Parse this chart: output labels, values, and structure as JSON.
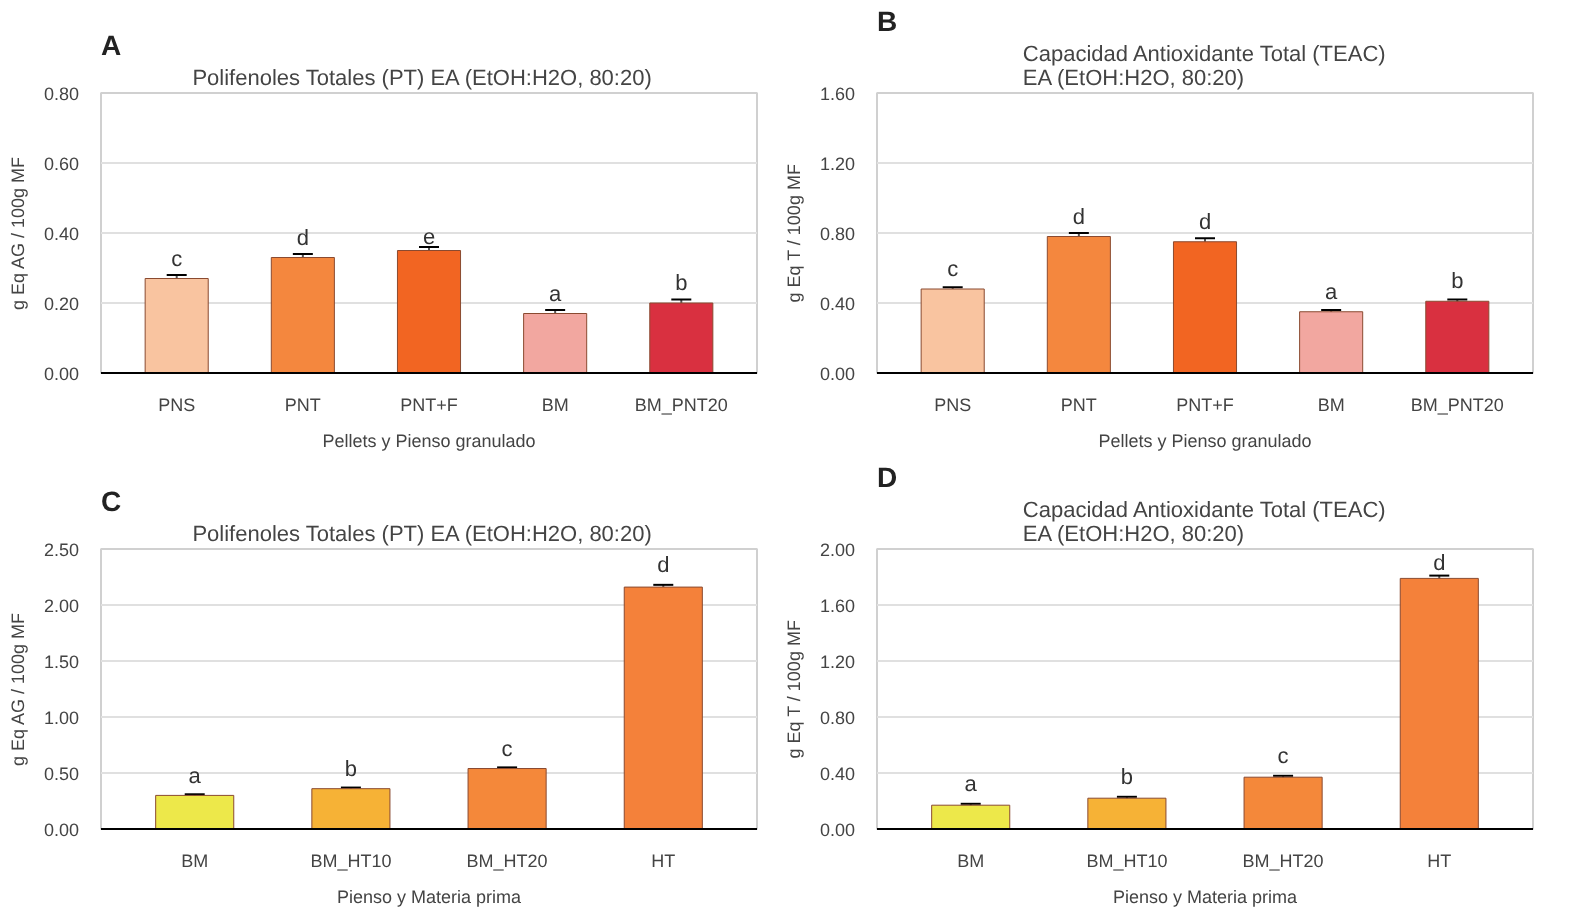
{
  "chart_data": [
    {
      "type": "bar",
      "title": "Polifenoles Totales (PT)   EA (EtOH:H2O, 80:20)",
      "xlabel": "Pellets y Pienso granulado",
      "ylabel": "g Eq AG / 100g MF",
      "categories": [
        "PNS",
        "PNT",
        "PNT+F",
        "BM",
        "BM_PNT20"
      ],
      "values": [
        0.27,
        0.33,
        0.35,
        0.17,
        0.2
      ],
      "errors": [
        0.01,
        0.01,
        0.01,
        0.01,
        0.01
      ],
      "colors": [
        "#f9c4a0",
        "#f4873e",
        "#f26522",
        "#f2a7a0",
        "#d93040"
      ],
      "ylim": [
        0,
        0.8
      ],
      "yticks": [
        {
          "value": 0,
          "label": "0.00"
        },
        {
          "value": 0.2,
          "label": "0.20"
        },
        {
          "value": 0.4,
          "label": "0.40"
        },
        {
          "value": 0.6,
          "label": "0.60"
        },
        {
          "value": 0.8,
          "label": "0.80"
        }
      ],
      "grid": "y",
      "annotations": [
        "A",
        {
          "text": "c",
          "x": "PNS",
          "y": 0.29
        },
        {
          "text": "d",
          "x": "PNT",
          "y": 0.35
        },
        {
          "text": "e",
          "x": "PNT+F",
          "y": 0.37
        },
        {
          "text": "a",
          "x": "BM",
          "y": 0.19
        },
        {
          "text": "b",
          "x": "BM_PNT20",
          "y": 0.22
        }
      ]
    },
    {
      "type": "bar",
      "title": "Capacidad Antioxidante Total (TEAC)\nEA (EtOH:H2O, 80:20)",
      "xlabel": "Pellets y Pienso granulado",
      "ylabel": "g Eq T / 100g MF",
      "categories": [
        "PNS",
        "PNT",
        "PNT+F",
        "BM",
        "BM_PNT20"
      ],
      "values": [
        0.48,
        0.78,
        0.75,
        0.35,
        0.41
      ],
      "errors": [
        0.01,
        0.02,
        0.02,
        0.01,
        0.01
      ],
      "colors": [
        "#f9c4a0",
        "#f4873e",
        "#f26522",
        "#f2a7a0",
        "#d93040"
      ],
      "ylim": [
        0,
        1.6
      ],
      "yticks": [
        {
          "value": 0,
          "label": "0.00"
        },
        {
          "value": 0.4,
          "label": "0.40"
        },
        {
          "value": 0.8,
          "label": "0.80"
        },
        {
          "value": 1.2,
          "label": "1.20"
        },
        {
          "value": 1.6,
          "label": "1.60"
        }
      ],
      "grid": "y",
      "annotations": [
        "B",
        {
          "text": "c",
          "x": "PNS",
          "y": 0.52
        },
        {
          "text": "d",
          "x": "PNT",
          "y": 0.82
        },
        {
          "text": "d",
          "x": "PNT+F",
          "y": 0.79
        },
        {
          "text": "a",
          "x": "BM",
          "y": 0.39
        },
        {
          "text": "b",
          "x": "BM_PNT20",
          "y": 0.45
        }
      ]
    },
    {
      "type": "bar",
      "title": "Polifenoles Totales (PT)   EA (EtOH:H2O, 80:20)",
      "xlabel": "Pienso y Materia prima",
      "ylabel": "g Eq AG / 100g MF",
      "categories": [
        "BM",
        "BM_HT10",
        "BM_HT20",
        "HT"
      ],
      "values": [
        0.3,
        0.36,
        0.54,
        2.16
      ],
      "errors": [
        0.01,
        0.01,
        0.01,
        0.02
      ],
      "colors": [
        "#ede84a",
        "#f6b236",
        "#f4883a",
        "#f4813a"
      ],
      "ylim": [
        0,
        2.5
      ],
      "yticks": [
        {
          "value": 0,
          "label": "0.00"
        },
        {
          "value": 0.5,
          "label": "0.50"
        },
        {
          "value": 1.0,
          "label": "1.00"
        },
        {
          "value": 1.5,
          "label": "1.50"
        },
        {
          "value": 2.0,
          "label": "2.00"
        },
        {
          "value": 2.5,
          "label": "2.50"
        }
      ],
      "grid": "y",
      "annotations": [
        "C",
        {
          "text": "a",
          "x": "BM",
          "y": 0.36
        },
        {
          "text": "b",
          "x": "BM_HT10",
          "y": 0.42
        },
        {
          "text": "c",
          "x": "BM_HT20",
          "y": 0.6
        },
        {
          "text": "d",
          "x": "HT",
          "y": 2.24
        }
      ]
    },
    {
      "type": "bar",
      "title": "Capacidad Antioxidante Total (TEAC)\nEA (EtOH:H2O, 80:20)",
      "xlabel": "Pienso y Materia prima",
      "ylabel": "g Eq T / 100g MF",
      "categories": [
        "BM",
        "BM_HT10",
        "BM_HT20",
        "HT"
      ],
      "values": [
        0.17,
        0.22,
        0.37,
        1.79
      ],
      "errors": [
        0.01,
        0.01,
        0.01,
        0.02
      ],
      "colors": [
        "#ede84a",
        "#f6b236",
        "#f4883a",
        "#f4813a"
      ],
      "ylim": [
        0,
        2.0
      ],
      "yticks": [
        {
          "value": 0,
          "label": "0.00"
        },
        {
          "value": 0.4,
          "label": "0.40"
        },
        {
          "value": 0.8,
          "label": "0.80"
        },
        {
          "value": 1.2,
          "label": "1.20"
        },
        {
          "value": 1.6,
          "label": "1.60"
        },
        {
          "value": 2.0,
          "label": "2.00"
        }
      ],
      "grid": "y",
      "annotations": [
        "D",
        {
          "text": "a",
          "x": "BM",
          "y": 0.23
        },
        {
          "text": "b",
          "x": "BM_HT10",
          "y": 0.28
        },
        {
          "text": "c",
          "x": "BM_HT20",
          "y": 0.43
        },
        {
          "text": "d",
          "x": "HT",
          "y": 1.81
        }
      ]
    }
  ]
}
